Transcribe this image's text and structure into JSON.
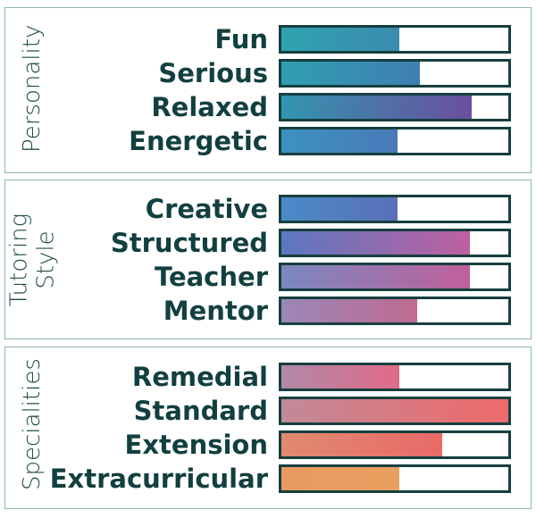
{
  "chart_data": [
    {
      "type": "bar",
      "title": "Personality",
      "xlim": [
        0,
        100
      ],
      "categories": [
        "Fun",
        "Serious",
        "Relaxed",
        "Energetic"
      ],
      "values": [
        52,
        61,
        84,
        51
      ],
      "colors": [
        [
          "#2fa3ae",
          "#3b8bb0"
        ],
        [
          "#2e9fb0",
          "#3f7fb3"
        ],
        [
          "#3196b0",
          "#6a4f9e"
        ],
        [
          "#3a93c0",
          "#4a7ab8"
        ]
      ]
    },
    {
      "type": "bar",
      "title": "Tutoring Style",
      "xlim": [
        0,
        100
      ],
      "categories": [
        "Creative",
        "Structured",
        "Teacher",
        "Mentor"
      ],
      "values": [
        51,
        83,
        83,
        60
      ],
      "colors": [
        [
          "#4a8ac8",
          "#5a70b8"
        ],
        [
          "#5a78c0",
          "#c060a0"
        ],
        [
          "#7a88c0",
          "#c0609a"
        ],
        [
          "#9a88b8",
          "#c06a90"
        ]
      ]
    },
    {
      "type": "bar",
      "title": "Specialities",
      "xlim": [
        0,
        100
      ],
      "categories": [
        "Remedial",
        "Standard",
        "Extension",
        "Extracurricular"
      ],
      "values": [
        52,
        100,
        71,
        52
      ],
      "colors": [
        [
          "#b08aa8",
          "#e06a88"
        ],
        [
          "#c08a98",
          "#ee6a6a"
        ],
        [
          "#e08a70",
          "#e86a68"
        ],
        [
          "#e89a60",
          "#e8a060"
        ]
      ]
    }
  ]
}
